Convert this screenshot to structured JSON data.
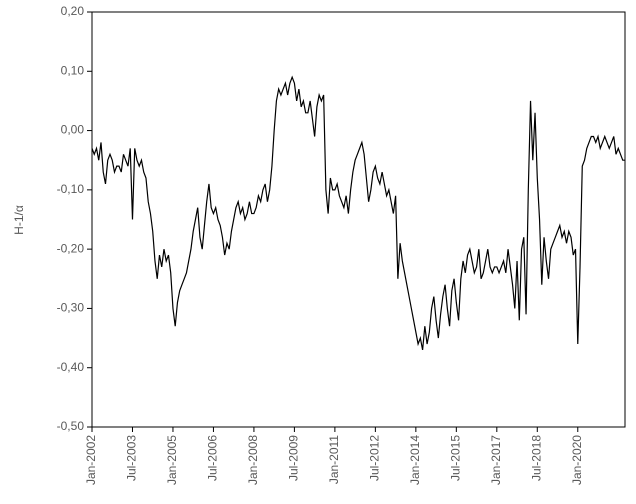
{
  "chart_data": {
    "type": "line",
    "y_label": "H-1/α",
    "x": [
      "Jan-2002",
      "Feb-2002",
      "Mar-2002",
      "Apr-2002",
      "May-2002",
      "Jun-2002",
      "Jul-2002",
      "Aug-2002",
      "Sep-2002",
      "Oct-2002",
      "Nov-2002",
      "Dec-2002",
      "Jan-2003",
      "Feb-2003",
      "Mar-2003",
      "Apr-2003",
      "May-2003",
      "Jun-2003",
      "Jul-2003",
      "Aug-2003",
      "Sep-2003",
      "Oct-2003",
      "Nov-2003",
      "Dec-2003",
      "Jan-2004",
      "Feb-2004",
      "Mar-2004",
      "Apr-2004",
      "May-2004",
      "Jun-2004",
      "Jul-2004",
      "Aug-2004",
      "Sep-2004",
      "Oct-2004",
      "Nov-2004",
      "Dec-2004",
      "Jan-2005",
      "Feb-2005",
      "Mar-2005",
      "Apr-2005",
      "May-2005",
      "Jun-2005",
      "Jul-2005",
      "Aug-2005",
      "Sep-2005",
      "Oct-2005",
      "Nov-2005",
      "Dec-2005",
      "Jan-2006",
      "Feb-2006",
      "Mar-2006",
      "Apr-2006",
      "May-2006",
      "Jun-2006",
      "Jul-2006",
      "Aug-2006",
      "Sep-2006",
      "Oct-2006",
      "Nov-2006",
      "Dec-2006",
      "Jan-2007",
      "Feb-2007",
      "Mar-2007",
      "Apr-2007",
      "May-2007",
      "Jun-2007",
      "Jul-2007",
      "Aug-2007",
      "Sep-2007",
      "Oct-2007",
      "Nov-2007",
      "Dec-2007",
      "Jan-2008",
      "Feb-2008",
      "Mar-2008",
      "Apr-2008",
      "May-2008",
      "Jun-2008",
      "Jul-2008",
      "Aug-2008",
      "Sep-2008",
      "Oct-2008",
      "Nov-2008",
      "Dec-2008",
      "Jan-2009",
      "Feb-2009",
      "Mar-2009",
      "Apr-2009",
      "May-2009",
      "Jun-2009",
      "Jul-2009",
      "Aug-2009",
      "Sep-2009",
      "Oct-2009",
      "Nov-2009",
      "Dec-2009",
      "Jan-2010",
      "Feb-2010",
      "Mar-2010",
      "Apr-2010",
      "May-2010",
      "Jun-2010",
      "Jul-2010",
      "Aug-2010",
      "Sep-2010",
      "Oct-2010",
      "Nov-2010",
      "Dec-2010",
      "Jan-2011",
      "Feb-2011",
      "Mar-2011",
      "Apr-2011",
      "May-2011",
      "Jun-2011",
      "Jul-2011",
      "Aug-2011",
      "Sep-2011",
      "Oct-2011",
      "Nov-2011",
      "Dec-2011",
      "Jan-2012",
      "Feb-2012",
      "Mar-2012",
      "Apr-2012",
      "May-2012",
      "Jun-2012",
      "Jul-2012",
      "Aug-2012",
      "Sep-2012",
      "Oct-2012",
      "Nov-2012",
      "Dec-2012",
      "Jan-2013",
      "Feb-2013",
      "Mar-2013",
      "Apr-2013",
      "May-2013",
      "Jun-2013",
      "Jul-2013",
      "Aug-2013",
      "Sep-2013",
      "Oct-2013",
      "Nov-2013",
      "Dec-2013",
      "Jan-2014",
      "Feb-2014",
      "Mar-2014",
      "Apr-2014",
      "May-2014",
      "Jun-2014",
      "Jul-2014",
      "Aug-2014",
      "Sep-2014",
      "Oct-2014",
      "Nov-2014",
      "Dec-2014",
      "Jan-2015",
      "Feb-2015",
      "Mar-2015",
      "Apr-2015",
      "May-2015",
      "Jun-2015",
      "Jul-2015",
      "Aug-2015",
      "Sep-2015",
      "Oct-2015",
      "Nov-2015",
      "Dec-2015",
      "Jan-2016",
      "Feb-2016",
      "Mar-2016",
      "Apr-2016",
      "May-2016",
      "Jun-2016",
      "Jul-2016",
      "Aug-2016",
      "Sep-2016",
      "Oct-2016",
      "Nov-2016",
      "Dec-2016",
      "Jan-2017",
      "Feb-2017",
      "Mar-2017",
      "Apr-2017",
      "May-2017",
      "Jun-2017",
      "Jul-2017",
      "Aug-2017",
      "Sep-2017",
      "Oct-2017",
      "Nov-2017",
      "Dec-2017",
      "Jan-2018",
      "Feb-2018",
      "Mar-2018",
      "Apr-2018",
      "May-2018",
      "Jun-2018",
      "Jul-2018",
      "Aug-2018",
      "Sep-2018",
      "Oct-2018",
      "Nov-2018",
      "Dec-2018",
      "Jan-2019",
      "Feb-2019",
      "Mar-2019",
      "Apr-2019",
      "May-2019",
      "Jun-2019",
      "Jul-2019",
      "Aug-2019",
      "Sep-2019",
      "Oct-2019",
      "Nov-2019",
      "Dec-2019",
      "Jan-2020",
      "Feb-2020",
      "Mar-2020",
      "Apr-2020",
      "May-2020",
      "Jun-2020",
      "Jul-2020",
      "Aug-2020",
      "Sep-2020",
      "Oct-2020",
      "Nov-2020",
      "Dec-2020",
      "Jan-2021",
      "Feb-2021",
      "Mar-2021",
      "Apr-2021",
      "May-2021",
      "Jun-2021",
      "Jul-2021",
      "Aug-2021",
      "Sep-2021",
      "Oct-2021"
    ],
    "series": [
      {
        "color": "#000000",
        "values": [
          -0.03,
          -0.04,
          -0.03,
          -0.05,
          -0.02,
          -0.07,
          -0.09,
          -0.05,
          -0.04,
          -0.05,
          -0.07,
          -0.06,
          -0.06,
          -0.07,
          -0.04,
          -0.05,
          -0.06,
          -0.03,
          -0.15,
          -0.03,
          -0.05,
          -0.06,
          -0.05,
          -0.07,
          -0.08,
          -0.12,
          -0.14,
          -0.17,
          -0.22,
          -0.25,
          -0.21,
          -0.23,
          -0.2,
          -0.22,
          -0.21,
          -0.24,
          -0.3,
          -0.33,
          -0.29,
          -0.27,
          -0.26,
          -0.25,
          -0.24,
          -0.22,
          -0.2,
          -0.17,
          -0.15,
          -0.13,
          -0.18,
          -0.2,
          -0.16,
          -0.12,
          -0.09,
          -0.13,
          -0.14,
          -0.13,
          -0.15,
          -0.16,
          -0.18,
          -0.21,
          -0.19,
          -0.2,
          -0.17,
          -0.15,
          -0.13,
          -0.12,
          -0.14,
          -0.13,
          -0.15,
          -0.14,
          -0.12,
          -0.14,
          -0.14,
          -0.13,
          -0.11,
          -0.12,
          -0.1,
          -0.09,
          -0.12,
          -0.1,
          -0.06,
          0.0,
          0.05,
          0.07,
          0.06,
          0.07,
          0.08,
          0.06,
          0.08,
          0.09,
          0.08,
          0.05,
          0.07,
          0.04,
          0.05,
          0.03,
          0.03,
          0.05,
          0.02,
          -0.01,
          0.04,
          0.06,
          0.05,
          0.06,
          -0.1,
          -0.14,
          -0.08,
          -0.1,
          -0.1,
          -0.09,
          -0.11,
          -0.12,
          -0.13,
          -0.11,
          -0.14,
          -0.1,
          -0.07,
          -0.05,
          -0.04,
          -0.03,
          -0.02,
          -0.04,
          -0.08,
          -0.12,
          -0.1,
          -0.07,
          -0.06,
          -0.08,
          -0.09,
          -0.07,
          -0.09,
          -0.11,
          -0.1,
          -0.12,
          -0.14,
          -0.11,
          -0.25,
          -0.19,
          -0.22,
          -0.24,
          -0.26,
          -0.28,
          -0.3,
          -0.32,
          -0.34,
          -0.36,
          -0.35,
          -0.37,
          -0.33,
          -0.36,
          -0.34,
          -0.3,
          -0.28,
          -0.32,
          -0.35,
          -0.31,
          -0.28,
          -0.26,
          -0.3,
          -0.33,
          -0.27,
          -0.25,
          -0.29,
          -0.32,
          -0.25,
          -0.22,
          -0.24,
          -0.21,
          -0.2,
          -0.22,
          -0.24,
          -0.23,
          -0.2,
          -0.25,
          -0.24,
          -0.22,
          -0.2,
          -0.23,
          -0.24,
          -0.23,
          -0.23,
          -0.24,
          -0.23,
          -0.22,
          -0.24,
          -0.2,
          -0.23,
          -0.26,
          -0.3,
          -0.22,
          -0.32,
          -0.2,
          -0.18,
          -0.31,
          -0.1,
          0.05,
          -0.05,
          0.03,
          -0.08,
          -0.15,
          -0.26,
          -0.18,
          -0.22,
          -0.25,
          -0.2,
          -0.19,
          -0.18,
          -0.17,
          -0.16,
          -0.18,
          -0.17,
          -0.19,
          -0.17,
          -0.18,
          -0.21,
          -0.2,
          -0.36,
          -0.23,
          -0.06,
          -0.05,
          -0.03,
          -0.02,
          -0.01,
          -0.01,
          -0.02,
          -0.01,
          -0.03,
          -0.02,
          -0.01,
          -0.02,
          -0.03,
          -0.02,
          -0.01,
          -0.04,
          -0.03,
          -0.04,
          -0.05,
          -0.05
        ]
      }
    ],
    "xlim": [
      "Jan-2002",
      "Oct-2021"
    ],
    "xticks": [
      "Jan-2002",
      "Jul-2003",
      "Jan-2005",
      "Jul-2006",
      "Jan-2008",
      "Jul-2009",
      "Jan-2011",
      "Jul-2012",
      "Jan-2014",
      "Jul-2015",
      "Jan-2017",
      "Jul-2018",
      "Jan-2020"
    ],
    "ylim": [
      -0.5,
      0.2
    ],
    "yticks": [
      {
        "value": -0.5,
        "label": "-0,50"
      },
      {
        "value": -0.4,
        "label": "-0,40"
      },
      {
        "value": -0.3,
        "label": "-0,30"
      },
      {
        "value": -0.2,
        "label": "-0,20"
      },
      {
        "value": -0.1,
        "label": "-0,10"
      },
      {
        "value": 0,
        "label": "0,00"
      },
      {
        "value": 0.1,
        "label": "0,10"
      },
      {
        "value": 0.2,
        "label": "0,20"
      }
    ]
  }
}
